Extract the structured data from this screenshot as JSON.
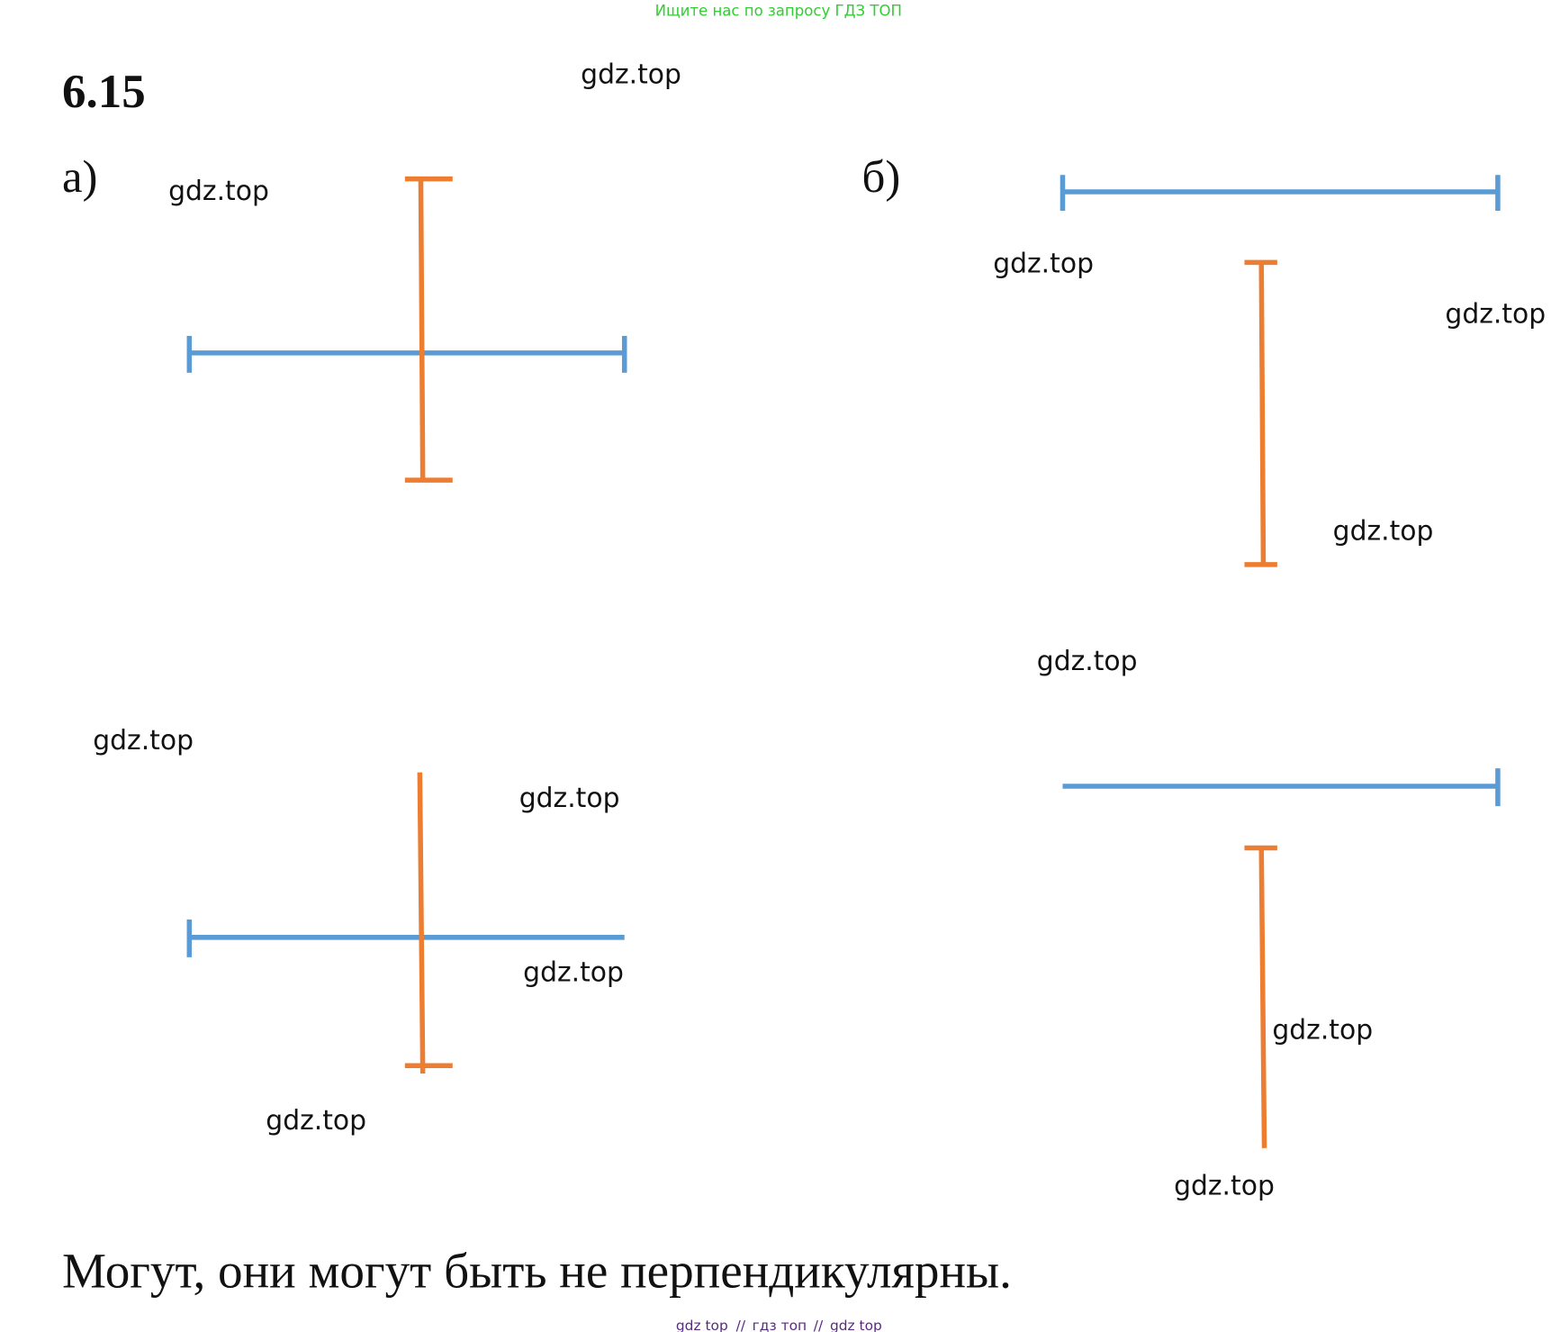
{
  "top_banner": "Ищите нас по запросу ГДЗ ТОП",
  "problem_number": "6.15",
  "parts": [
    {
      "label": "а)"
    },
    {
      "label": "б)"
    }
  ],
  "watermarks": [
    "gdz.top",
    "gdz.top",
    "gdz.top",
    "gdz.top",
    "gdz.top",
    "gdz.top",
    "gdz.top",
    "gdz.top",
    "gdz.top",
    "gdz.top",
    "gdz.top",
    "gdz.top"
  ],
  "answer": "Могут, они могут быть не перпендикулярны.",
  "footer": {
    "items": [
      "gdz top",
      "гдз топ",
      "gdz top"
    ],
    "separator": "//"
  }
}
